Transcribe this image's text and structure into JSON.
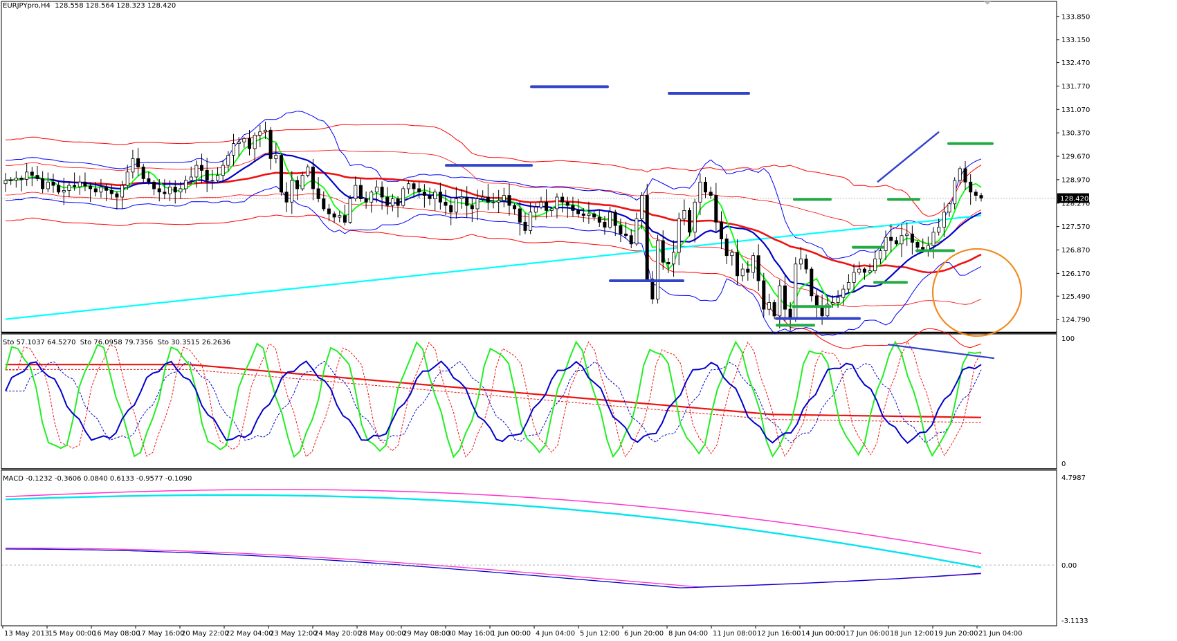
{
  "colors": {
    "background": "#ffffff",
    "grid": "#000000",
    "bull_candle": "#ffffff",
    "bear_candle": "#000000",
    "bollinger_outer": "#ff0000",
    "bollinger_inner": "#0000ff",
    "ma_fast": "#00ff00",
    "ma_mid": "#0000cc",
    "ma_slow": "#ee1111",
    "ma_long": "#00ffff",
    "annotation_blue": "#3344cc",
    "annotation_green": "#22aa44",
    "circle": "#f28a1e",
    "macd_main": "#00e5ee",
    "macd_signal": "#ff33cc",
    "price_tag_bg": "#000000",
    "price_tag_text": "#ffffff"
  },
  "header": {
    "symbol_label": "EURJPYpro,H4  128.558 128.564 128.323 128.420"
  },
  "stochastic": {
    "label": "Sto 57.1037 64.5270  Sto 76.0958 79.7356  Sto 30.3515 26.2636",
    "axis_top": "100",
    "axis_bottom": "0"
  },
  "macd": {
    "label": "MACD -0.1232 -0.3606 0.0840 0.6133 -0.9577 -0.1090",
    "axis_top": "4.7987",
    "axis_zero": "0.00",
    "axis_bottom": "-3.1133"
  },
  "price_axis": {
    "ticks": [
      "133.850",
      "133.150",
      "132.470",
      "131.770",
      "131.070",
      "130.370",
      "129.670",
      "128.970",
      "128.270",
      "127.570",
      "126.870",
      "126.170",
      "125.490",
      "124.790"
    ],
    "current_price": "128.420"
  },
  "time_axis": {
    "ticks": [
      "13 May 2013",
      "15 May 00:00",
      "16 May 08:00",
      "17 May 16:00",
      "20 May 22:00",
      "22 May 04:00",
      "23 May 12:00",
      "24 May 20:00",
      "28 May 00:00",
      "29 May 08:00",
      "30 May 16:00",
      "1 Jun 00:00",
      "4 Jun 04:00",
      "5 Jun 12:00",
      "6 Jun 20:00",
      "8 Jun 04:00",
      "11 Jun 08:00",
      "12 Jun 16:00",
      "14 Jun 00:00",
      "17 Jun 06:00",
      "18 Jun 12:00",
      "19 Jun 20:00",
      "21 Jun 04:00"
    ]
  },
  "chart_data": {
    "type": "candlestick",
    "symbol": "EURJPYpro",
    "timeframe": "H4",
    "ylim": [
      124.4,
      134.3
    ],
    "closes": [
      128.95,
      128.96,
      129.02,
      128.98,
      129.2,
      129.1,
      129.0,
      128.7,
      128.9,
      128.8,
      128.6,
      128.65,
      128.8,
      128.76,
      128.9,
      128.78,
      128.7,
      128.6,
      128.75,
      128.65,
      128.55,
      128.45,
      128.8,
      129.2,
      129.6,
      129.35,
      129.0,
      128.9,
      128.7,
      128.6,
      128.55,
      128.75,
      128.6,
      128.7,
      128.95,
      129.05,
      129.4,
      129.25,
      128.95,
      128.95,
      129.1,
      129.4,
      129.7,
      130.05,
      130.1,
      130.2,
      129.9,
      130.3,
      130.4,
      130.45,
      129.6,
      129.7,
      128.6,
      128.3,
      128.95,
      128.7,
      129.1,
      129.35,
      128.7,
      128.4,
      128.1,
      127.95,
      127.85,
      127.9,
      127.7,
      128.4,
      128.8,
      128.4,
      128.3,
      128.6,
      128.75,
      128.45,
      128.2,
      128.4,
      128.2,
      128.7,
      128.85,
      128.7,
      128.6,
      128.5,
      128.4,
      128.6,
      128.3,
      128.2,
      128.0,
      128.4,
      128.45,
      128.2,
      128.1,
      128.4,
      128.45,
      128.3,
      128.3,
      128.35,
      128.5,
      128.2,
      128.1,
      127.7,
      127.45,
      128.0,
      128.15,
      128.3,
      128.05,
      128.1,
      128.45,
      128.3,
      128.2,
      128.05,
      127.95,
      127.9,
      127.95,
      127.85,
      127.7,
      127.55,
      128.0,
      127.6,
      127.35,
      127.3,
      127.05,
      127.8,
      128.5,
      126.0,
      125.4,
      127.15,
      126.5,
      126.45,
      126.8,
      127.8,
      128.05,
      127.4,
      128.3,
      128.9,
      128.6,
      128.5,
      127.7,
      127.2,
      126.7,
      126.8,
      126.1,
      126.3,
      126.2,
      126.7,
      125.95,
      125.1,
      125.3,
      124.9,
      125.8,
      125.1,
      124.8,
      126.45,
      126.6,
      126.3,
      125.5,
      125.2,
      124.9,
      125.25,
      125.3,
      125.45,
      125.7,
      125.9,
      126.2,
      126.3,
      126.2,
      126.25,
      126.6,
      126.85,
      127.25,
      127.15,
      127.05,
      127.3,
      127.35,
      127.1,
      126.95,
      126.85,
      127.0,
      127.4,
      127.55,
      128.0,
      128.25,
      128.95,
      129.3,
      128.9,
      128.6,
      128.5,
      128.42
    ]
  }
}
